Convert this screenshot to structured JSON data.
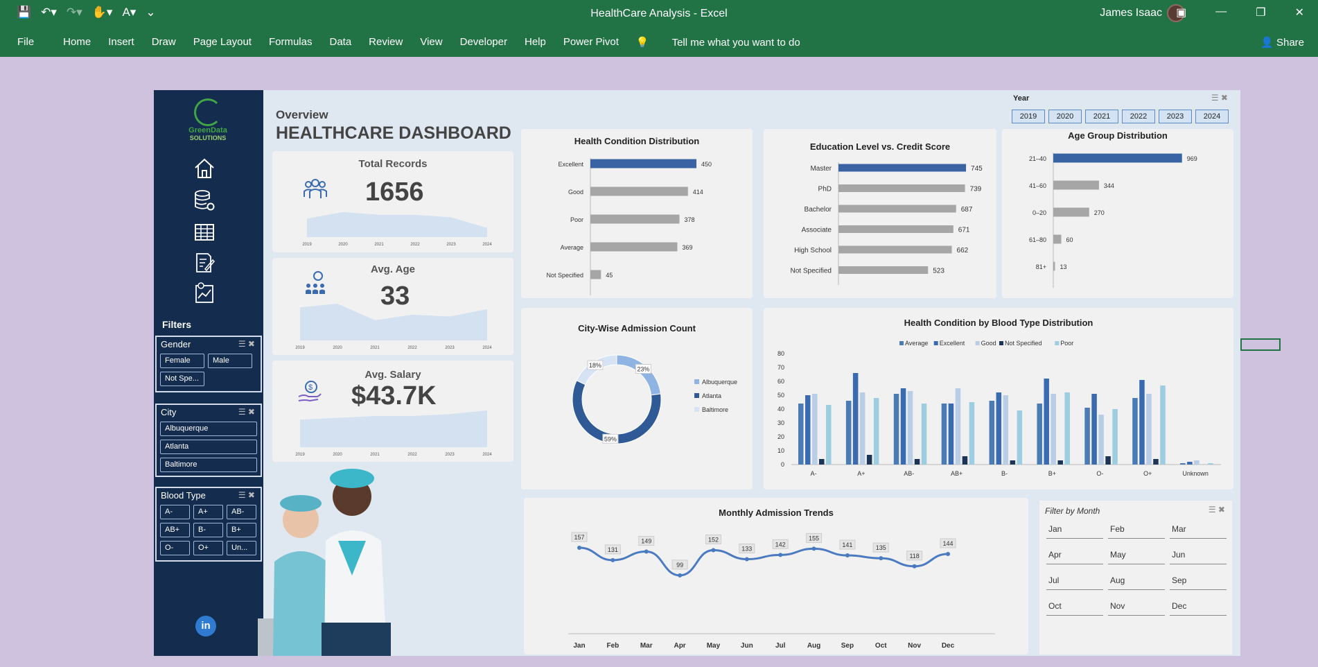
{
  "window": {
    "title": "HealthCare Analysis  -  Excel",
    "user": "James Isaac"
  },
  "ribbon": {
    "tabs": [
      "File",
      "Home",
      "Insert",
      "Draw",
      "Page Layout",
      "Formulas",
      "Data",
      "Review",
      "View",
      "Developer",
      "Help",
      "Power Pivot"
    ],
    "tell_me": "Tell me what you want to do",
    "share": "Share"
  },
  "logo": {
    "line1": "GreenData",
    "line2": "SOLUTIONS"
  },
  "overview": {
    "subtitle": "Overview",
    "title": "HEALTHCARE DASHBOARD"
  },
  "filters": {
    "title": "Filters",
    "gender": {
      "label": "Gender",
      "items": [
        "Female",
        "Male",
        "Not Spe..."
      ]
    },
    "city": {
      "label": "City",
      "items": [
        "Albuquerque",
        "Atlanta",
        "Baltimore"
      ]
    },
    "blood": {
      "label": "Blood Type",
      "items": [
        "A-",
        "A+",
        "AB-",
        "AB+",
        "B-",
        "B+",
        "O-",
        "O+",
        "Un..."
      ]
    }
  },
  "kpis": {
    "records": {
      "label": "Total Records",
      "value": "1656",
      "years": [
        "2019",
        "2020",
        "2021",
        "2022",
        "2023",
        "2024"
      ]
    },
    "age": {
      "label": "Avg. Age",
      "value": "33",
      "years": [
        "2019",
        "2020",
        "2021",
        "2022",
        "2023",
        "2024"
      ]
    },
    "salary": {
      "label": "Avg. Salary",
      "value": "$43.7K",
      "years": [
        "2019",
        "2020",
        "2021",
        "2022",
        "2023",
        "2024"
      ]
    }
  },
  "year_slicer": {
    "label": "Year",
    "items": [
      "2019",
      "2020",
      "2021",
      "2022",
      "2023",
      "2024"
    ]
  },
  "month_slicer": {
    "label": "Filter by Month",
    "items": [
      "Jan",
      "Feb",
      "Mar",
      "Apr",
      "May",
      "Jun",
      "Jul",
      "Aug",
      "Sep",
      "Oct",
      "Nov",
      "Dec"
    ]
  },
  "colors": {
    "accent": "#3a63a3",
    "gray": "#a6a6a6",
    "sidebar": "#142c4d",
    "excel": "#217346"
  },
  "chart_data": [
    {
      "id": "health",
      "type": "bar",
      "title": "Health Condition Distribution",
      "categories": [
        "Excellent",
        "Good",
        "Poor",
        "Average",
        "Not Specified"
      ],
      "values": [
        450,
        414,
        378,
        369,
        45
      ],
      "xlim": [
        0,
        500
      ]
    },
    {
      "id": "edu",
      "type": "bar",
      "title": "Education Level vs. Credit Score",
      "categories": [
        "Master",
        "PhD",
        "Bachelor",
        "Associate",
        "High School",
        "Not Specified"
      ],
      "values": [
        745,
        739,
        687,
        671,
        662,
        523
      ],
      "xlim": [
        0,
        850
      ]
    },
    {
      "id": "agegrp",
      "type": "bar",
      "title": "Age Group Distribution",
      "categories": [
        "21–40",
        "41–60",
        "0–20",
        "61–80",
        "81+"
      ],
      "values": [
        969,
        344,
        270,
        60,
        13
      ],
      "xlim": [
        0,
        1200
      ]
    },
    {
      "id": "city",
      "type": "pie",
      "title": "City-Wise Admission Count",
      "categories": [
        "Albuquerque",
        "Atlanta",
        "Baltimore"
      ],
      "values": [
        23,
        59,
        18
      ],
      "labels": [
        "23%",
        "59%",
        "18%"
      ],
      "colors": [
        "#8fb4e3",
        "#2f5a96",
        "#d6e3f4"
      ],
      "legend": "right"
    },
    {
      "id": "blood",
      "type": "bar",
      "title": "Health Condition by Blood Type Distribution",
      "categories": [
        "A-",
        "A+",
        "AB-",
        "AB+",
        "B-",
        "B+",
        "O-",
        "O+",
        "Unknown"
      ],
      "ylim": [
        0,
        80
      ],
      "yticks": [
        0,
        10,
        20,
        30,
        40,
        50,
        60,
        70,
        80
      ],
      "legend": "top",
      "series": [
        {
          "name": "Average",
          "color": "#4a7bb5",
          "values": [
            44,
            46,
            51,
            44,
            46,
            44,
            41,
            48,
            1
          ]
        },
        {
          "name": "Excellent",
          "color": "#3a6bb0",
          "values": [
            50,
            66,
            55,
            44,
            52,
            62,
            51,
            61,
            2
          ]
        },
        {
          "name": "Good",
          "color": "#b9cde6",
          "values": [
            51,
            52,
            53,
            55,
            50,
            51,
            36,
            51,
            3
          ]
        },
        {
          "name": "Not Specified",
          "color": "#1c3557",
          "values": [
            4,
            7,
            4,
            6,
            3,
            3,
            6,
            4,
            0
          ]
        },
        {
          "name": "Poor",
          "color": "#9ccde0",
          "values": [
            43,
            48,
            44,
            45,
            39,
            52,
            40,
            57,
            1
          ]
        }
      ]
    },
    {
      "id": "monthly",
      "type": "line",
      "title": "Monthly Admission Trends",
      "categories": [
        "Jan",
        "Feb",
        "Mar",
        "Apr",
        "May",
        "Jun",
        "Jul",
        "Aug",
        "Sep",
        "Oct",
        "Nov",
        "Dec"
      ],
      "values": [
        157,
        131,
        149,
        99,
        152,
        133,
        142,
        155,
        141,
        135,
        118,
        144
      ]
    }
  ]
}
